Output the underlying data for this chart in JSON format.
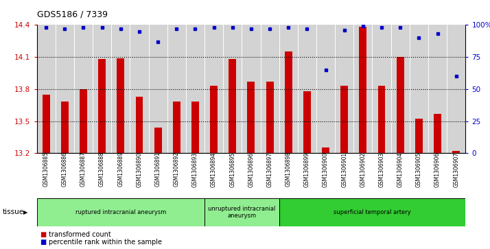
{
  "title": "GDS5186 / 7339",
  "samples": [
    "GSM1306885",
    "GSM1306886",
    "GSM1306887",
    "GSM1306888",
    "GSM1306889",
    "GSM1306890",
    "GSM1306891",
    "GSM1306892",
    "GSM1306893",
    "GSM1306894",
    "GSM1306895",
    "GSM1306896",
    "GSM1306897",
    "GSM1306898",
    "GSM1306899",
    "GSM1306900",
    "GSM1306901",
    "GSM1306902",
    "GSM1306903",
    "GSM1306904",
    "GSM1306905",
    "GSM1306906",
    "GSM1306907"
  ],
  "bar_values": [
    13.75,
    13.68,
    13.8,
    14.08,
    14.09,
    13.73,
    13.44,
    13.68,
    13.68,
    13.83,
    14.08,
    13.87,
    13.87,
    14.15,
    13.78,
    13.25,
    13.83,
    14.38,
    13.83,
    14.1,
    13.52,
    13.57,
    13.22
  ],
  "percentile_values": [
    98,
    97,
    98,
    98,
    97,
    95,
    87,
    97,
    97,
    98,
    98,
    97,
    97,
    98,
    97,
    65,
    96,
    99,
    98,
    98,
    90,
    93,
    60
  ],
  "ylim_left": [
    13.2,
    14.4
  ],
  "ylim_right": [
    0,
    100
  ],
  "bar_color": "#cc0000",
  "dot_color": "#0000cc",
  "plot_bg": "#d3d3d3",
  "group_color_light": "#90ee90",
  "group_color_dark": "#32cd32",
  "groups": [
    {
      "label": "ruptured intracranial aneurysm",
      "start": 0,
      "end": 9,
      "color": "#90ee90"
    },
    {
      "label": "unruptured intracranial\naneurysm",
      "start": 9,
      "end": 13,
      "color": "#90ee90"
    },
    {
      "label": "superficial temporal artery",
      "start": 13,
      "end": 23,
      "color": "#32cd32"
    }
  ],
  "tissue_label": "tissue",
  "legend_items": [
    {
      "label": "transformed count",
      "color": "#cc0000"
    },
    {
      "label": "percentile rank within the sample",
      "color": "#0000cc"
    }
  ],
  "dotted_lines": [
    13.5,
    13.8,
    14.1
  ],
  "left_ticks": [
    13.2,
    13.5,
    13.8,
    14.1,
    14.4
  ],
  "right_ticks": [
    0,
    25,
    50,
    75,
    100
  ],
  "right_tick_labels": [
    "0",
    "25",
    "50",
    "75",
    "100%"
  ]
}
